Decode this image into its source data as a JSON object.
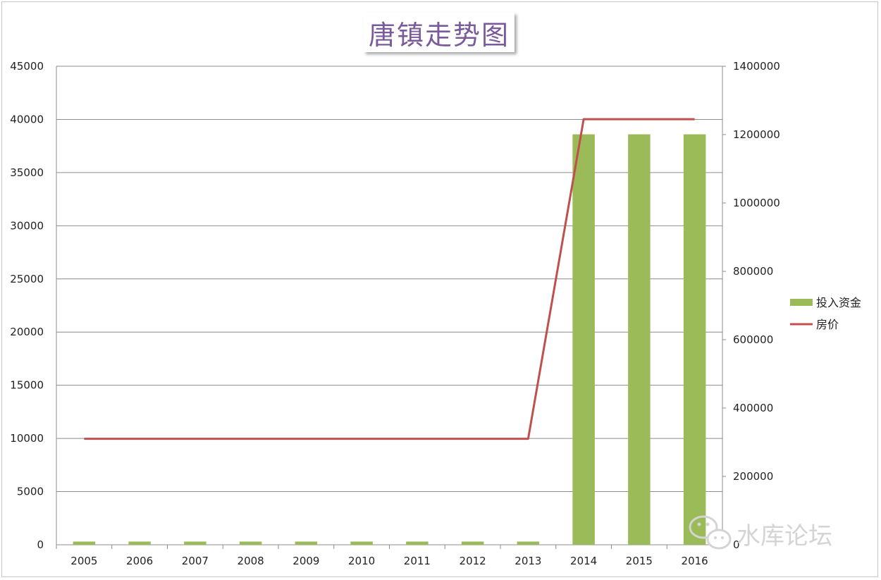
{
  "chart_data": {
    "type": "bar",
    "title": "唐镇走势图",
    "categories": [
      "2005",
      "2006",
      "2007",
      "2008",
      "2009",
      "2010",
      "2011",
      "2012",
      "2013",
      "2014",
      "2015",
      "2016"
    ],
    "series": [
      {
        "name": "投入资金",
        "type": "bar",
        "axis": "left",
        "color": "#9bbb59",
        "values": [
          300,
          300,
          300,
          300,
          300,
          300,
          300,
          300,
          300,
          38600,
          38600,
          38600
        ]
      },
      {
        "name": "房价",
        "type": "line",
        "axis": "right",
        "color": "#c0504d",
        "values": [
          310000,
          310000,
          310000,
          310000,
          310000,
          310000,
          310000,
          310000,
          310000,
          1245000,
          1245000,
          1245000
        ]
      }
    ],
    "y_left": {
      "ylim": [
        0,
        45000
      ],
      "ticks": [
        "0",
        "5000",
        "10000",
        "15000",
        "20000",
        "25000",
        "30000",
        "35000",
        "40000",
        "45000"
      ]
    },
    "y_right": {
      "ylim": [
        0,
        1400000
      ],
      "ticks": [
        "0",
        "200000",
        "400000",
        "600000",
        "800000",
        "1000000",
        "1200000",
        "1400000"
      ]
    },
    "grid": true,
    "legend_position": "right"
  },
  "watermark": {
    "text": "水库论坛",
    "icon": "wechat-icon"
  }
}
